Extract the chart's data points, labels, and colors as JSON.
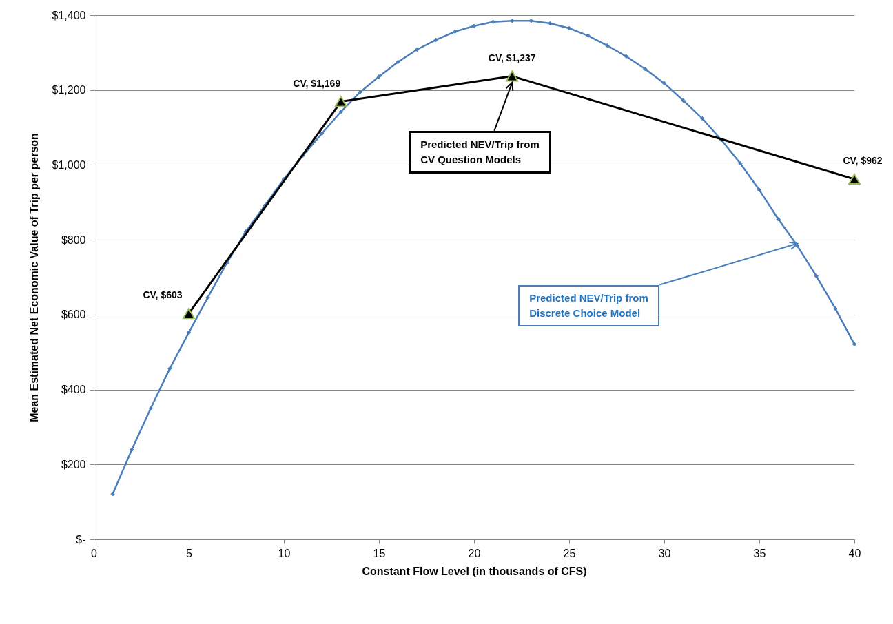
{
  "chart_data": {
    "type": "line",
    "xlabel": "Constant Flow Level (in thousands of CFS)",
    "ylabel": "Mean Estimated Net Economic Value of Trip per person",
    "xlim": [
      0,
      40
    ],
    "xticks": [
      0,
      5,
      10,
      15,
      20,
      25,
      30,
      35,
      40
    ],
    "ylim": [
      0,
      1400
    ],
    "yticks": [
      {
        "value": 0,
        "label": "$-"
      },
      {
        "value": 200,
        "label": "$200"
      },
      {
        "value": 400,
        "label": "$400"
      },
      {
        "value": 600,
        "label": "$600"
      },
      {
        "value": 800,
        "label": "$800"
      },
      {
        "value": 1000,
        "label": "$1,000"
      },
      {
        "value": 1200,
        "label": "$1,200"
      },
      {
        "value": 1400,
        "label": "$1,400"
      }
    ],
    "grid": "y",
    "series": [
      {
        "color": "#4a7ebb",
        "marker": "diamond",
        "x": [
          1,
          2,
          3,
          4,
          5,
          6,
          7,
          8,
          9,
          10,
          11,
          12,
          13,
          14,
          15,
          16,
          17,
          18,
          19,
          20,
          21,
          22,
          23,
          24,
          25,
          26,
          27,
          28,
          29,
          30,
          31,
          32,
          33,
          34,
          35,
          36,
          37,
          38,
          39,
          40
        ],
        "values": [
          121,
          239,
          350,
          456,
          552,
          646,
          738,
          822,
          892,
          962,
          1025,
          1084,
          1142,
          1194,
          1236,
          1275,
          1308,
          1334,
          1356,
          1371,
          1382,
          1385,
          1385,
          1378,
          1365,
          1345,
          1319,
          1290,
          1256,
          1218,
          1172,
          1124,
          1067,
          1004,
          933,
          855,
          784,
          703,
          616,
          521
        ]
      },
      {
        "color": "#000000",
        "marker": "triangle",
        "x": [
          5,
          13,
          22,
          40
        ],
        "values": [
          603,
          1169,
          1237,
          962
        ],
        "value_labels": [
          "CV,  $603",
          "CV,  $1,169",
          "CV,  $1,237",
          "CV,  $962"
        ]
      }
    ],
    "annotations": [
      {
        "text": "Predicted NEV/Trip from\nDiscrete Choice Model",
        "x": 37,
        "y": 790
      },
      {
        "text": "Predicted NEV/Trip from\nCV Question Models",
        "x": 22,
        "y": 1220
      }
    ]
  }
}
